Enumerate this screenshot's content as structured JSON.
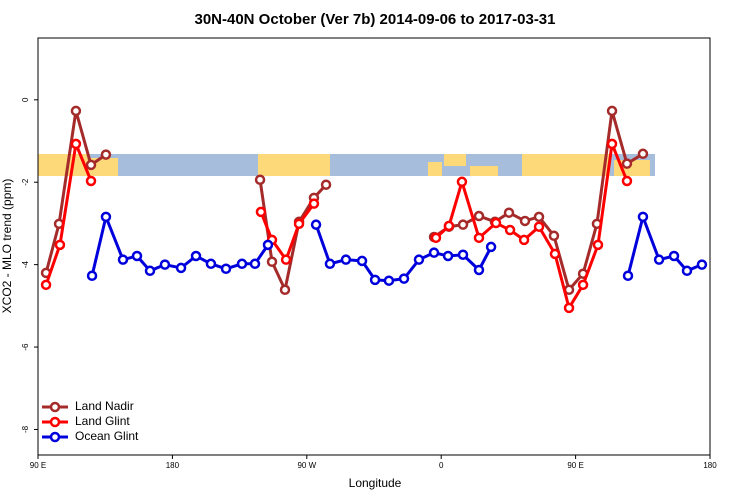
{
  "chart_data": {
    "type": "line",
    "title": "30N-40N October (Ver 7b)   2014-09-06 to 2017-03-31",
    "x_label": "Longitude",
    "y_label": "XCO2 - MLO trend (ppm)",
    "xlim": [
      90,
      540
    ],
    "ylim": [
      -8.62,
      1.5
    ],
    "xticks": [
      {
        "value": 90,
        "label": "90 E"
      },
      180,
      {
        "value": 270,
        "label": "90 W"
      },
      {
        "value": 360,
        "label": "0"
      },
      {
        "value": 450,
        "label": "90 E"
      },
      {
        "value": 540,
        "label": "180"
      }
    ],
    "yticks": [
      -8,
      -6,
      -4,
      -2,
      0
    ],
    "legend": "bottom-left",
    "series": [
      {
        "name": "Land Nadir",
        "color": "#a52a2a",
        "x": [
          95.4,
          104.1,
          115.4,
          125.5,
          135.5,
          null,
          238.7,
          246.7,
          255.4,
          264.8,
          274.8,
          282.9,
          null,
          355.2,
          365.2,
          374.6,
          385.3,
          396.0,
          405.4,
          416.1,
          425.5,
          435.5,
          445.6,
          455.0,
          464.3,
          474.4,
          484.4,
          495.1
        ],
        "values": [
          -4.2,
          -3.01,
          -0.27,
          -1.58,
          -1.33,
          null,
          -1.94,
          -3.93,
          -4.61,
          -2.96,
          -2.38,
          -2.06,
          null,
          -3.33,
          -3.08,
          -3.03,
          -2.82,
          -2.96,
          -2.74,
          -2.94,
          -2.84,
          -3.3,
          -4.61,
          -4.22,
          -3.01,
          -0.27,
          -1.55,
          -1.31
        ]
      },
      {
        "name": "Land Glint",
        "color": "#ff0000",
        "x": [
          95.4,
          104.7,
          115.4,
          125.5,
          null,
          239.3,
          246.7,
          256.1,
          264.8,
          274.8,
          null,
          356.5,
          365.2,
          373.9,
          385.3,
          396.7,
          406.1,
          415.5,
          425.5,
          436.2,
          445.6,
          455.0,
          465.0,
          474.4,
          484.4
        ],
        "values": [
          -4.49,
          -3.52,
          -1.07,
          -1.97,
          null,
          -2.72,
          -3.4,
          -3.88,
          -3.01,
          -2.52,
          null,
          -3.35,
          -3.06,
          -1.99,
          -3.35,
          -2.99,
          -3.16,
          -3.4,
          -3.08,
          -3.74,
          -5.05,
          -4.49,
          -3.52,
          -1.07,
          -1.97
        ]
      },
      {
        "name": "Ocean Glint",
        "color": "#0000dd",
        "x": [
          126.2,
          135.5,
          146.9,
          156.3,
          165.0,
          175.0,
          185.8,
          195.8,
          205.8,
          215.9,
          226.6,
          235.3,
          244.0,
          null,
          276.2,
          285.5,
          296.2,
          307.0,
          315.7,
          325.0,
          335.1,
          345.1,
          355.2,
          364.6,
          374.6,
          385.3,
          393.4,
          null,
          485.1,
          495.1,
          505.9,
          515.9,
          524.6,
          534.6
        ],
        "values": [
          -4.27,
          -2.84,
          -3.88,
          -3.79,
          -4.15,
          -4.0,
          -4.08,
          -3.79,
          -3.98,
          -4.1,
          -3.98,
          -3.98,
          -3.52,
          null,
          -3.03,
          -3.98,
          -3.88,
          -3.91,
          -4.37,
          -4.39,
          -4.34,
          -3.88,
          -3.71,
          -3.79,
          -3.76,
          -4.13,
          -3.57,
          null,
          -4.27,
          -2.84,
          -3.88,
          -3.79,
          -4.15,
          -4.0
        ]
      }
    ]
  }
}
